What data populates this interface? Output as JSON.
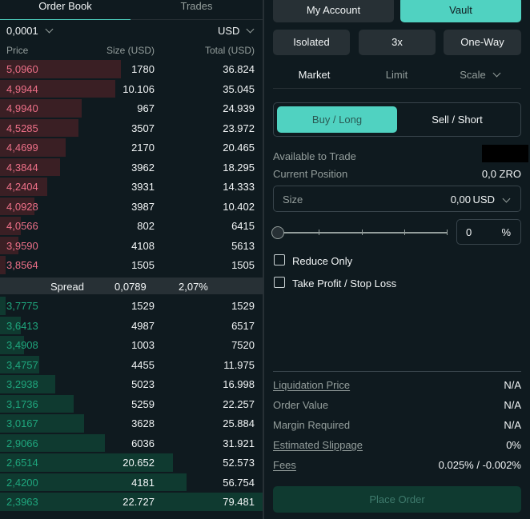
{
  "orderbook": {
    "tabs": [
      "Order Book",
      "Trades"
    ],
    "tick_size": "0,0001",
    "currency": "USD",
    "headers": {
      "price": "Price",
      "size": "Size (USD)",
      "total": "Total (USD)"
    },
    "asks": [
      {
        "price": "5,0960",
        "size": "1780",
        "total": "36.824",
        "depth": 0.46
      },
      {
        "price": "4,9944",
        "size": "10.106",
        "total": "35.045",
        "depth": 0.44
      },
      {
        "price": "4,9940",
        "size": "967",
        "total": "24.939",
        "depth": 0.31
      },
      {
        "price": "4,5285",
        "size": "3507",
        "total": "23.972",
        "depth": 0.3
      },
      {
        "price": "4,4699",
        "size": "2170",
        "total": "20.465",
        "depth": 0.25
      },
      {
        "price": "4,3844",
        "size": "3962",
        "total": "18.295",
        "depth": 0.23
      },
      {
        "price": "4,2404",
        "size": "3931",
        "total": "14.333",
        "depth": 0.18
      },
      {
        "price": "4,0928",
        "size": "3987",
        "total": "10.402",
        "depth": 0.13
      },
      {
        "price": "4,0566",
        "size": "802",
        "total": "6415",
        "depth": 0.08
      },
      {
        "price": "3,9590",
        "size": "4108",
        "total": "5613",
        "depth": 0.07
      },
      {
        "price": "3,8564",
        "size": "1505",
        "total": "1505",
        "depth": 0.02
      }
    ],
    "spread": {
      "label": "Spread",
      "value": "0,0789",
      "percent": "2,07%"
    },
    "bids": [
      {
        "price": "3,7775",
        "size": "1529",
        "total": "1529",
        "depth": 0.02
      },
      {
        "price": "3,6413",
        "size": "4987",
        "total": "6517",
        "depth": 0.08
      },
      {
        "price": "3,4908",
        "size": "1003",
        "total": "7520",
        "depth": 0.09
      },
      {
        "price": "3,4757",
        "size": "4455",
        "total": "11.975",
        "depth": 0.15
      },
      {
        "price": "3,2938",
        "size": "5023",
        "total": "16.998",
        "depth": 0.21
      },
      {
        "price": "3,1736",
        "size": "5259",
        "total": "22.257",
        "depth": 0.28
      },
      {
        "price": "3,0167",
        "size": "3628",
        "total": "25.884",
        "depth": 0.32
      },
      {
        "price": "2,9066",
        "size": "6036",
        "total": "31.921",
        "depth": 0.4
      },
      {
        "price": "2,6514",
        "size": "20.652",
        "total": "52.573",
        "depth": 0.66
      },
      {
        "price": "2,4200",
        "size": "4181",
        "total": "56.754",
        "depth": 0.71
      },
      {
        "price": "2,3963",
        "size": "22.727",
        "total": "79.481",
        "depth": 1.0
      }
    ]
  },
  "account": {
    "my_account": "My Account",
    "vault": "Vault"
  },
  "settings": {
    "margin": "Isolated",
    "leverage": "3x",
    "mode": "One-Way"
  },
  "order_types": {
    "market": "Market",
    "limit": "Limit",
    "scale": "Scale"
  },
  "side": {
    "buy": "Buy / Long",
    "sell": "Sell / Short"
  },
  "info": {
    "available_label": "Available to Trade",
    "position_label": "Current Position",
    "position_value": "0,0 ZRO"
  },
  "size": {
    "label": "Size",
    "value": "0,00",
    "unit": "USD"
  },
  "slider": {
    "value": "0",
    "unit": "%"
  },
  "options": {
    "reduce_only": "Reduce Only",
    "tp_sl": "Take Profit / Stop Loss"
  },
  "summary": [
    {
      "label": "Liquidation Price",
      "value": "N/A",
      "underline": true
    },
    {
      "label": "Order Value",
      "value": "N/A",
      "underline": false
    },
    {
      "label": "Margin Required",
      "value": "N/A",
      "underline": false
    },
    {
      "label": "Estimated Slippage",
      "value": "0%",
      "underline": true
    },
    {
      "label": "Fees",
      "value": "0.025% / -0.002%",
      "underline": true
    }
  ],
  "place_order": "Place Order",
  "colors": {
    "accent": "#50d2c1",
    "ask": "#ed7088",
    "bid": "#1fa67d"
  }
}
